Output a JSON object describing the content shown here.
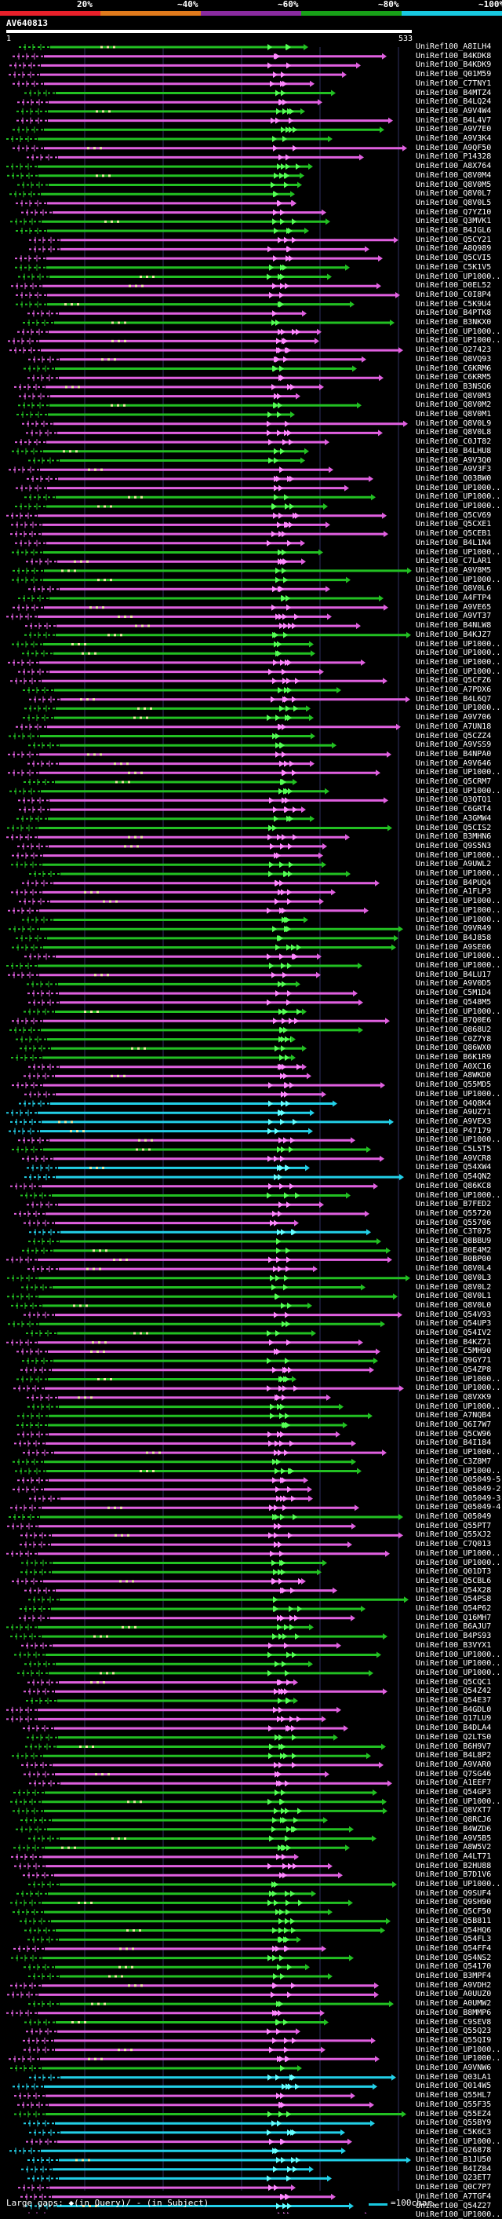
{
  "scale": {
    "labels": [
      "20%",
      "~40%",
      "~60%",
      "~80%",
      "~100%"
    ],
    "colors": [
      "#e8202a",
      "#e07a1c",
      "#8a2ba0",
      "#18a018",
      "#18c8e0"
    ]
  },
  "query": {
    "id": "AV640813",
    "start": "1",
    "end": "533"
  },
  "colors": {
    "magenta": "#e060e0",
    "green": "#22c022",
    "cyan": "#22d0e8",
    "gap": "#e8e8a0",
    "grid": "#303060"
  },
  "hits": [
    "UniRef100_A8ILH4",
    "UniRef100_B4KDK8",
    "UniRef100_B4KDK9",
    "UniRef100_Q01M59",
    "UniRef100_C7TNY1",
    "UniRef100_B4MTZ4",
    "UniRef100_B4LQ24",
    "UniRef100_A9V4W4",
    "UniRef100_B4L4V7",
    "UniRef100_A9V7E0",
    "UniRef100_A9V3K4",
    "UniRef100_A9QF50",
    "UniRef100_P14328",
    "UniRef100_A8X764",
    "UniRef100_Q8V0M4",
    "UniRef100_Q8V0M5",
    "UniRef100_Q8V0L7",
    "UniRef100_Q8V0L5",
    "UniRef100_Q7YZ10",
    "UniRef100_Q3MVK1",
    "UniRef100_B4JGL6",
    "UniRef100_Q5CY21",
    "UniRef100_A8Q989",
    "UniRef100_Q5CVI5",
    "UniRef100_C5K1V5",
    "UniRef100_UP1000...",
    "UniRef100_D0EL52",
    "UniRef100_C0I8P4",
    "UniRef100_C5K9U4",
    "UniRef100_B4PTK8",
    "UniRef100_B3NKX0",
    "UniRef100_UP1000...",
    "UniRef100_UP1000...",
    "UniRef100_Q27423",
    "UniRef100_Q8VQ93",
    "UniRef100_C6KRM6",
    "UniRef100_C6KRM5",
    "UniRef100_B3NSQ6",
    "UniRef100_Q8V0M3",
    "UniRef100_Q8V0M2",
    "UniRef100_Q8V0M1",
    "UniRef100_Q8V0L9",
    "UniRef100_Q8V0L8",
    "UniRef100_C0JT82",
    "UniRef100_B4LHU8",
    "UniRef100_A9V3Q0",
    "UniRef100_A9V3F3",
    "UniRef100_Q03BW0",
    "UniRef100_UP1000...",
    "UniRef100_UP1000...",
    "UniRef100_UP1000...",
    "UniRef100_Q5CV69",
    "UniRef100_Q5CXE1",
    "UniRef100_Q5CEB1",
    "UniRef100_B4L1N4",
    "UniRef100_UP1000...",
    "UniRef100_C7LAR1",
    "UniRef100_A9V8M5",
    "UniRef100_UP1000...",
    "UniRef100_Q8V0L6",
    "UniRef100_A4FTP4",
    "UniRef100_A9VE65",
    "UniRef100_A9VT37",
    "UniRef100_B4NLW8",
    "UniRef100_B4KJZ7",
    "UniRef100_UP1000...",
    "UniRef100_UP1000...",
    "UniRef100_UP1000...",
    "UniRef100_UP1000...",
    "UniRef100_Q5CFZ6",
    "UniRef100_A7PDX6",
    "UniRef100_B4L6Q7",
    "UniRef100_UP1000...",
    "UniRef100_A9V706",
    "UniRef100_A7UN18",
    "UniRef100_Q5CZZ4",
    "UniRef100_A9VSS9",
    "UniRef100_B4NPA0",
    "UniRef100_A9V646",
    "UniRef100_UP1000...",
    "UniRef100_Q5CRM7",
    "UniRef100_UP1000...",
    "UniRef100_Q3QTQ1",
    "UniRef100_C6GRT4",
    "UniRef100_A3GMW4",
    "UniRef100_Q5CIS2",
    "UniRef100_B3MHN6",
    "UniRef100_Q9S5N3",
    "UniRef100_UP1000...",
    "UniRef100_A9UWL2",
    "UniRef100_UP1000...",
    "UniRef100_B4PUQ4",
    "UniRef100_A1FLP3",
    "UniRef100_UP1000...",
    "UniRef100_UP1000...",
    "UniRef100_UP1000...",
    "UniRef100_Q9VR49",
    "UniRef100_B4J858",
    "UniRef100_A9SE06",
    "UniRef100_UP1000...",
    "UniRef100_UP1000...",
    "UniRef100_B4LU17",
    "UniRef100_A9V0D5",
    "UniRef100_C5M1D4",
    "UniRef100_Q548M5",
    "UniRef100_UP1000...",
    "UniRef100_B7Q0E6",
    "UniRef100_Q868U2",
    "UniRef100_C0Z7Y8",
    "UniRef100_Q86WX0",
    "UniRef100_B6K1R9",
    "UniRef100_A0XC16",
    "UniRef100_A8WKD0",
    "UniRef100_Q55MD5",
    "UniRef100_UP1000...",
    "UniRef100_Q4Q8K4",
    "UniRef100_A9UZ71",
    "UniRef100_A9VEX3",
    "UniRef100_P47179",
    "UniRef100_UP1000...",
    "UniRef100_C5L5T5",
    "UniRef100_A9VCR8",
    "UniRef100_Q54XW4",
    "UniRef100_Q54QN2",
    "UniRef100_Q86KC8",
    "UniRef100_UP1000...",
    "UniRef100_B7FED2",
    "UniRef100_Q55720",
    "UniRef100_Q55706",
    "UniRef100_C3T075",
    "UniRef100_Q8BBU9",
    "UniRef100_B0E4M2",
    "UniRef100_B0BP00",
    "UniRef100_Q8V0L4",
    "UniRef100_Q8V0L3",
    "UniRef100_Q8V0L2",
    "UniRef100_Q8V0L1",
    "UniRef100_Q8V0L0",
    "UniRef100_Q54V93",
    "UniRef100_Q54UP3",
    "UniRef100_Q54IV2",
    "UniRef100_B4KZ71",
    "UniRef100_C5MH90",
    "UniRef100_Q9GY71",
    "UniRef100_Q54ZP8",
    "UniRef100_UP1000...",
    "UniRef100_UP1000...",
    "UniRef100_Q8VXK9",
    "UniRef100_UP1000...",
    "UniRef100_A7NQB4",
    "UniRef100_Q6I7W7",
    "UniRef100_Q5CW96",
    "UniRef100_B4I184",
    "UniRef100_UP1000...",
    "UniRef100_C3Z8M7",
    "UniRef100_UP1000...",
    "UniRef100_Q05049-5",
    "UniRef100_Q05049-2",
    "UniRef100_Q05049-3",
    "UniRef100_Q05049-4",
    "UniRef100_Q05049",
    "UniRef100_Q55PT7",
    "UniRef100_Q55XJ2",
    "UniRef100_C7Q013",
    "UniRef100_UP1000...",
    "UniRef100_UP1000...",
    "UniRef100_Q01DT3",
    "UniRef100_Q5CBL6",
    "UniRef100_Q54X28",
    "UniRef100_Q54PS8",
    "UniRef100_Q54P62",
    "UniRef100_Q16MH7",
    "UniRef100_B6AJU7",
    "UniRef100_B4PS93",
    "UniRef100_B3VYX1",
    "UniRef100_UP1000...",
    "UniRef100_UP1000...",
    "UniRef100_UP1000...",
    "UniRef100_Q5CQC1",
    "UniRef100_Q54Z42",
    "UniRef100_Q54E37",
    "UniRef100_B4GDL0",
    "UniRef100_Q17LU9",
    "UniRef100_B4DLA4",
    "UniRef100_Q2LTS0",
    "UniRef100_B6H9V7",
    "UniRef100_B4L8P2",
    "UniRef100_A9VAR0",
    "UniRef100_Q7SG46",
    "UniRef100_A1EEF7",
    "UniRef100_Q54GP3",
    "UniRef100_UP1000...",
    "UniRef100_Q8VXT7",
    "UniRef100_Q8RCJ6",
    "UniRef100_B4WZD6",
    "UniRef100_A9V5B5",
    "UniRef100_A8W5V2",
    "UniRef100_A4LT71",
    "UniRef100_B2HU88",
    "UniRef100_B7D1V6",
    "UniRef100_UP1000...",
    "UniRef100_Q9SUF4",
    "UniRef100_Q9SH90",
    "UniRef100_Q5CF50",
    "UniRef100_Q5B811",
    "UniRef100_Q54HQ6",
    "UniRef100_Q54FL3",
    "UniRef100_Q54FF4",
    "UniRef100_Q54NS2",
    "UniRef100_Q54170",
    "UniRef100_B3MPF4",
    "UniRef100_A9VDH2",
    "UniRef100_A0UUZ0",
    "UniRef100_A0UMW2",
    "UniRef100_B8MMP6",
    "UniRef100_C9SEV8",
    "UniRef100_Q55Q23",
    "UniRef100_Q55QI9",
    "UniRef100_UP1000...",
    "UniRef100_UP1000...",
    "UniRef100_A9VNW6",
    "UniRef100_Q03LA1",
    "UniRef100_Q014W5",
    "UniRef100_Q55HL7",
    "UniRef100_Q55F35",
    "UniRef100_Q55EZ4",
    "UniRef100_Q55BY9",
    "UniRef100_C5K6C3",
    "UniRef100_UP1000...",
    "UniRef100_Q26878",
    "UniRef100_B1JU50",
    "UniRef100_B4IZ84",
    "UniRef100_Q23ET7",
    "UniRef100_Q0C7P7",
    "UniRef100_A7TGF4",
    "UniRef100_Q54Z27",
    "UniRef100_UP1000..."
  ],
  "footer": {
    "text": "Large gaps: ◆(in Query)/ - (in Subject)",
    "legend": "=100char."
  }
}
